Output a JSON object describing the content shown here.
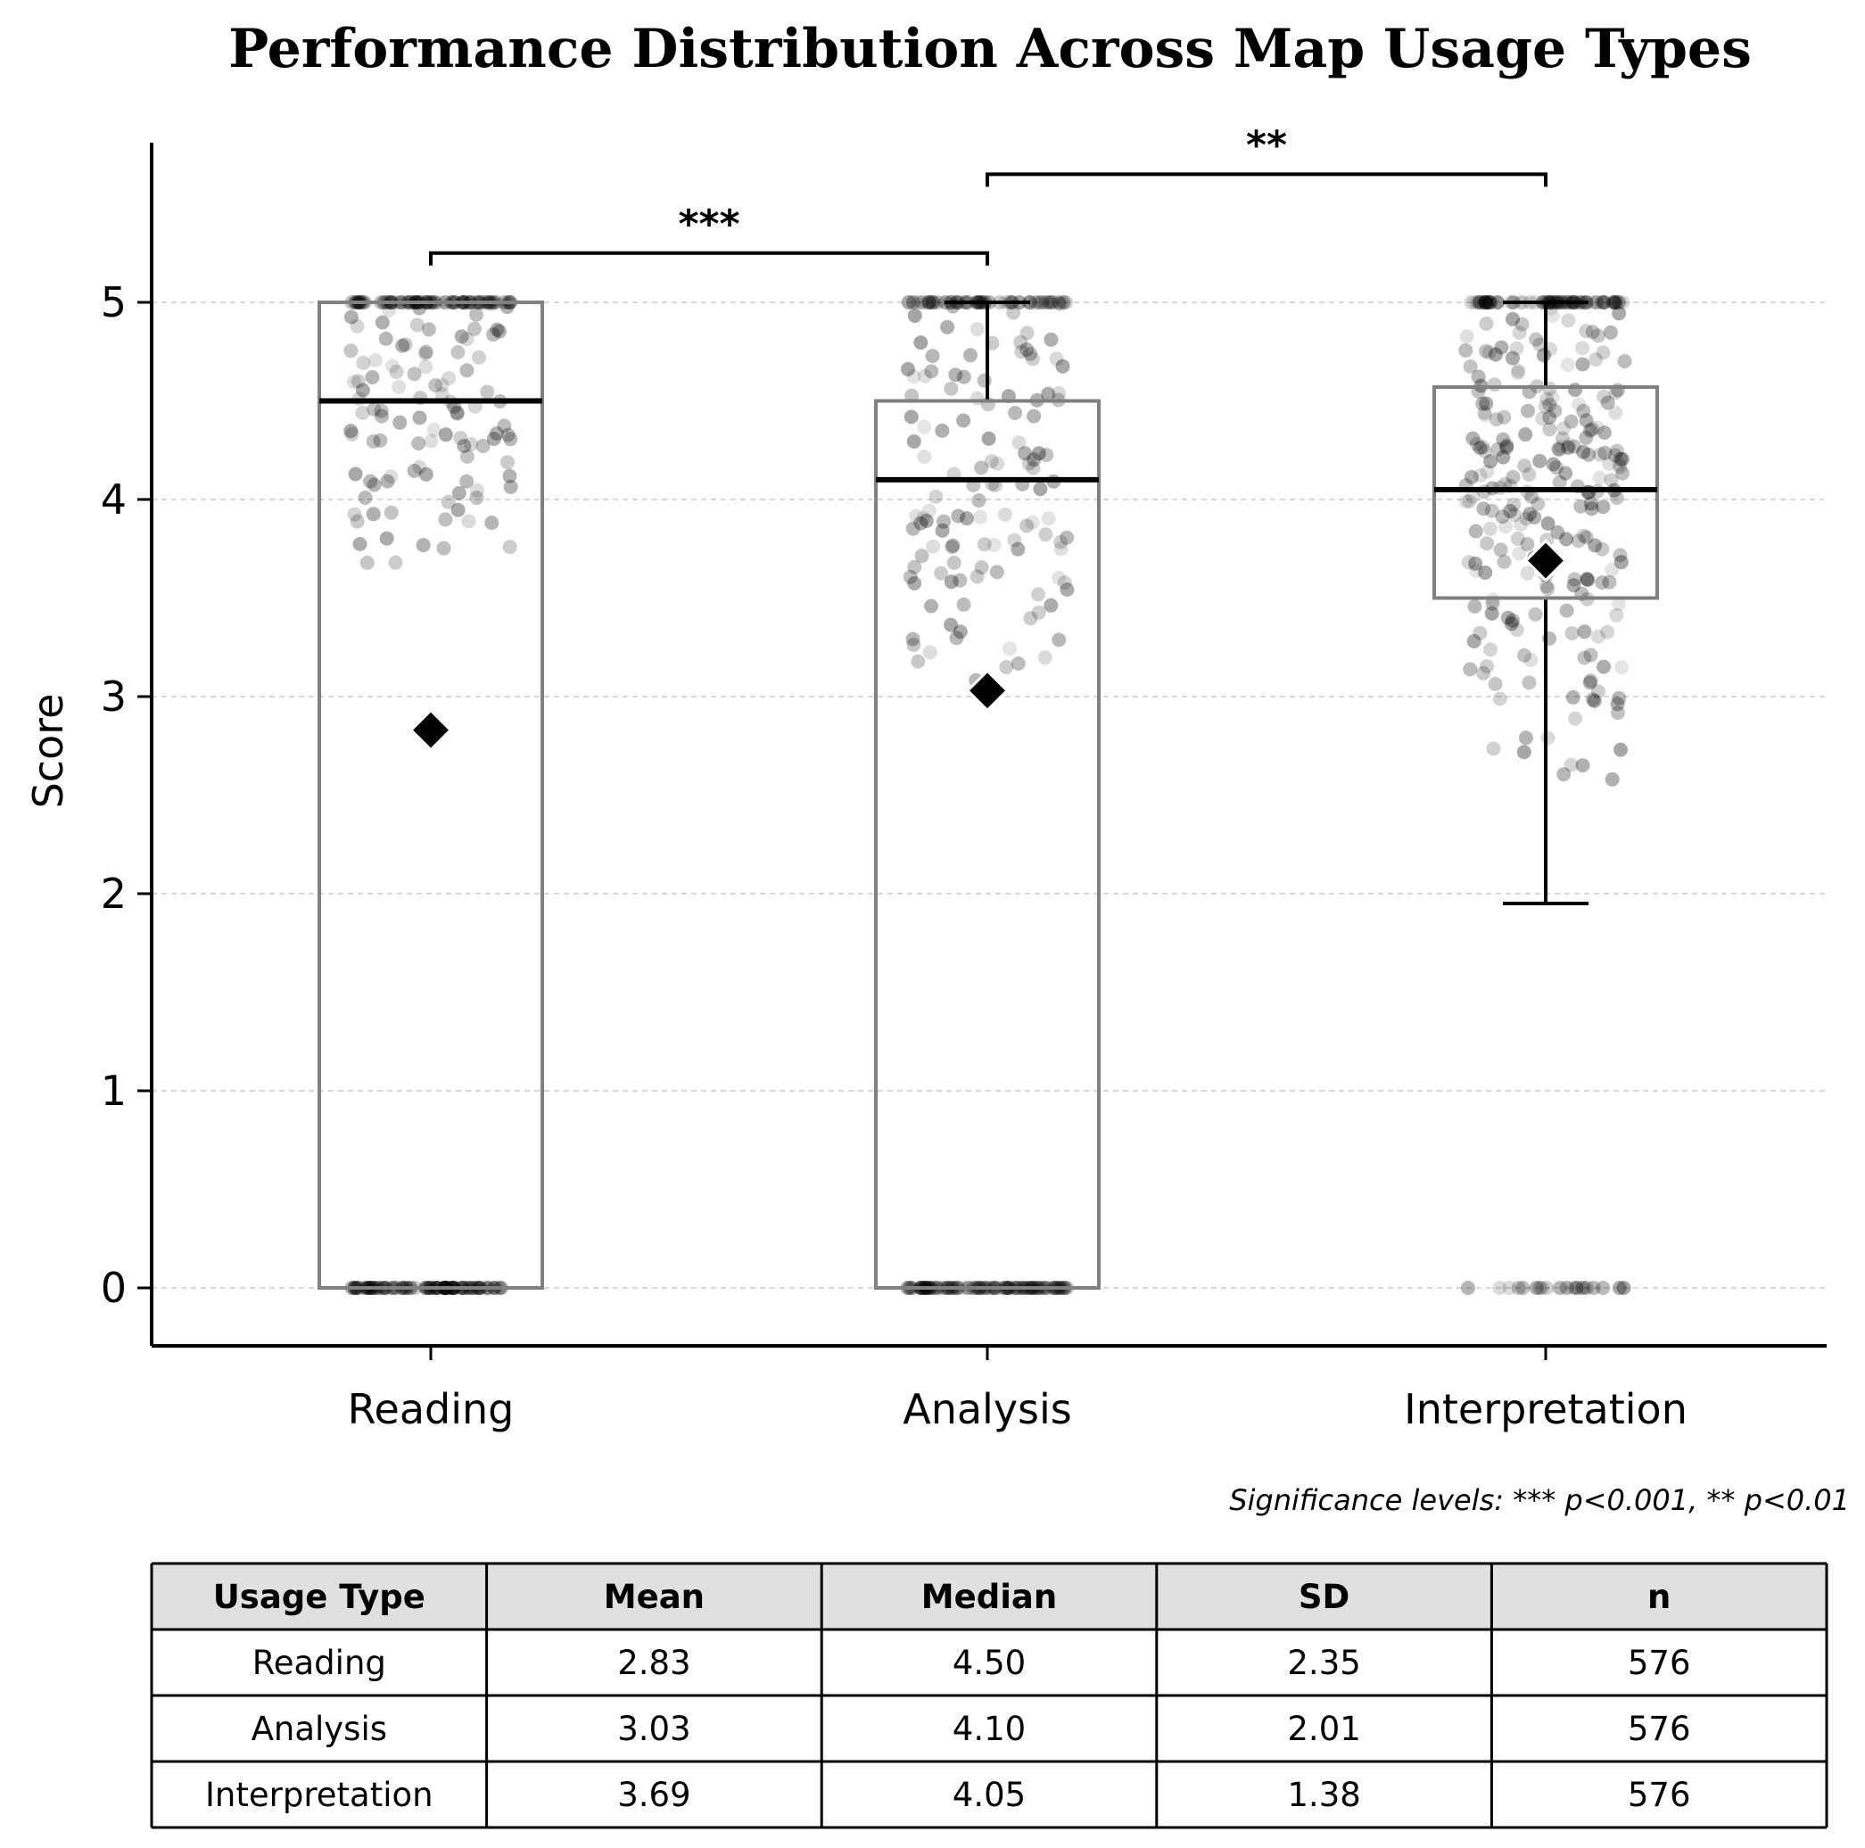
{
  "chart_data": {
    "type": "box",
    "title": "Performance Distribution Across Map Usage Types",
    "xlabel": "",
    "ylabel": "Score",
    "ylim": [
      -0.3,
      5.8
    ],
    "yticks": [
      0,
      1,
      2,
      3,
      4,
      5
    ],
    "grid": "y-dashed",
    "categories": [
      "Reading",
      "Analysis",
      "Interpretation"
    ],
    "boxes": [
      {
        "category": "Reading",
        "whisker_low": 0,
        "q1": 0,
        "median": 4.5,
        "q3": 5.0,
        "whisker_high": 5.0,
        "mean": 2.83
      },
      {
        "category": "Analysis",
        "whisker_low": 0,
        "q1": 0,
        "median": 4.1,
        "q3": 4.5,
        "whisker_high": 5.0,
        "mean": 3.03
      },
      {
        "category": "Interpretation",
        "whisker_low": 1.95,
        "q1": 3.5,
        "median": 4.05,
        "q3": 4.57,
        "whisker_high": 5.0,
        "mean": 3.69
      }
    ],
    "significance": [
      {
        "from": "Reading",
        "to": "Analysis",
        "label": "***",
        "y": 5.25
      },
      {
        "from": "Analysis",
        "to": "Interpretation",
        "label": "**",
        "y": 5.65
      }
    ],
    "note": "Significance levels: *** p<0.001, ** p<0.01",
    "table": {
      "columns": [
        "Usage Type",
        "Mean",
        "Median",
        "SD",
        "n"
      ],
      "rows": [
        [
          "Reading",
          "2.83",
          "4.50",
          "2.35",
          "576"
        ],
        [
          "Analysis",
          "3.03",
          "4.10",
          "2.01",
          "576"
        ],
        [
          "Interpretation",
          "3.69",
          "4.05",
          "1.38",
          "576"
        ]
      ]
    }
  }
}
